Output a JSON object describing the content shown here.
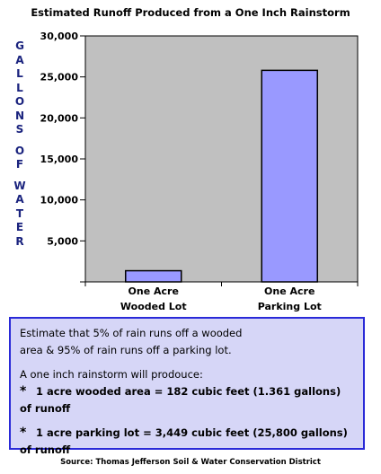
{
  "chart_data": {
    "type": "bar",
    "title": "Estimated Runoff Produced from a One Inch Rainstorm",
    "ylabel": "GALLONS OF WATER",
    "ylim": [
      0,
      30000
    ],
    "yticks": [
      0,
      5000,
      10000,
      15000,
      20000,
      25000,
      30000
    ],
    "ytick_labels": [
      "",
      "5,000",
      "10,000",
      "15,000",
      "20,000",
      "25,000",
      "30,000"
    ],
    "categories": [
      [
        "One Acre",
        "Wooded Lot"
      ],
      [
        "One Acre",
        "Parking Lot"
      ]
    ],
    "values": [
      1361,
      25800
    ],
    "bar_color": "#9999ff",
    "grid": false
  },
  "note": {
    "line1": "Estimate that 5% of rain runs off a wooded",
    "line2": "area & 95% of rain runs off a parking lot.",
    "line3": "A one inch rainstorm will prodouce:",
    "bullet1": "1 acre wooded area = 182 cubic feet (1.361 gallons) of runoff",
    "bullet2": "1 acre parking lot = 3,449 cubic feet (25,800 gallons) of runoff",
    "star": "*"
  },
  "source": "Source: Thomas Jefferson Soil & Water Conservation District"
}
